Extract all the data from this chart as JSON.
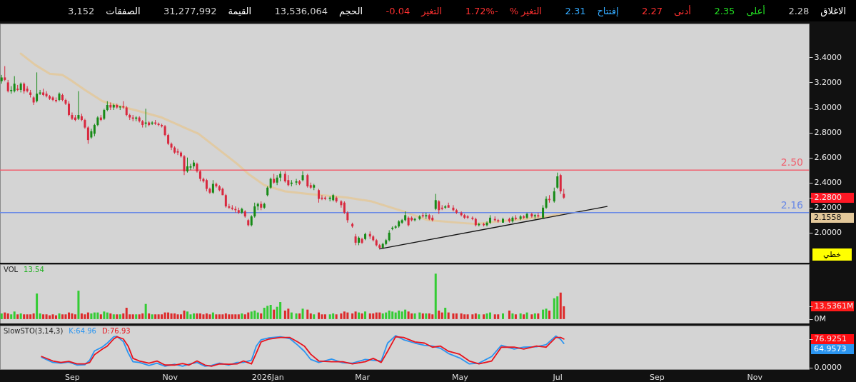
{
  "chart_data": [
    {
      "type": "other",
      "annotations": [
        "الاغلاق",
        "2.28",
        "أعلى",
        "2.35",
        "أدنى",
        "2.27",
        "إفتتاح",
        "2.31",
        "التغير %",
        "1.72%-",
        "التغير",
        "-0.04",
        "الحجم",
        "13,536,064",
        "القيمة",
        "31,277,992",
        "الصفقات",
        "3,152"
      ]
    },
    {
      "type": "candlestick",
      "x": [
        "2025-07-19",
        "2025-07-21",
        "2025-07-23",
        "2025-07-25",
        "2025-07-27",
        "2025-07-29",
        "2025-07-31",
        "2025-08-02",
        "2025-08-04",
        "2025-08-06",
        "2025-08-08",
        "2025-08-10",
        "2025-08-12",
        "2025-08-14",
        "2025-08-16",
        "2025-08-18",
        "2025-08-20",
        "2025-08-22",
        "2025-08-24",
        "2025-08-26",
        "2025-08-28",
        "2025-08-30",
        "2025-09-01",
        "2025-09-03",
        "2025-09-05",
        "2025-09-07",
        "2025-09-09",
        "2025-09-11",
        "2025-09-13",
        "2025-09-15",
        "2025-09-17",
        "2025-09-19",
        "2025-09-21",
        "2025-09-23",
        "2025-09-25",
        "2025-09-27",
        "2025-09-29",
        "2025-10-01",
        "2025-10-03",
        "2025-10-05",
        "2025-10-07",
        "2025-10-09",
        "2025-10-11",
        "2025-10-13",
        "2025-10-15",
        "2025-10-17",
        "2025-10-19",
        "2025-10-21",
        "2025-10-23",
        "2025-10-25",
        "2025-10-27",
        "2025-10-29",
        "2025-10-31",
        "2025-11-02",
        "2025-11-04",
        "2025-11-06",
        "2025-11-08",
        "2025-11-10",
        "2025-11-12",
        "2025-11-14",
        "2025-11-16",
        "2025-11-18",
        "2025-11-20",
        "2025-11-22",
        "2025-11-24",
        "2025-11-26",
        "2025-11-28",
        "2025-11-30",
        "2025-12-02",
        "2025-12-04",
        "2025-12-06",
        "2025-12-08",
        "2025-12-10",
        "2025-12-12",
        "2025-12-14",
        "2025-12-16",
        "2025-12-18",
        "2025-12-20",
        "2025-12-22",
        "2025-12-24",
        "2025-12-26",
        "2025-12-28",
        "2025-12-30",
        "2026-01-01",
        "2026-01-03",
        "2026-01-05",
        "2026-01-07",
        "2026-01-09",
        "2026-01-12",
        "2026-01-14",
        "2026-01-16",
        "2026-01-19",
        "2026-01-21",
        "2026-01-23",
        "2026-01-26",
        "2026-01-28",
        "2026-01-30",
        "2026-02-02",
        "2026-02-04",
        "2026-02-06",
        "2026-02-09",
        "2026-02-11",
        "2026-02-13",
        "2026-02-16",
        "2026-02-18",
        "2026-02-20",
        "2026-02-23",
        "2026-02-25",
        "2026-02-27",
        "2026-03-01",
        "2026-03-03",
        "2026-03-06",
        "2026-03-08",
        "2026-03-10",
        "2026-03-12",
        "2026-03-14",
        "2026-03-16",
        "2026-03-18",
        "2026-03-20",
        "2026-03-22",
        "2026-03-24",
        "2026-03-26",
        "2026-03-28",
        "2026-03-30",
        "2026-04-01",
        "2026-04-03",
        "2026-04-06",
        "2026-04-08",
        "2026-04-10",
        "2026-04-12",
        "2026-04-14",
        "2026-04-16",
        "2026-04-18",
        "2026-04-20",
        "2026-04-22",
        "2026-04-24",
        "2026-04-27",
        "2026-04-29",
        "2026-05-02",
        "2026-05-04",
        "2026-05-06",
        "2026-05-09",
        "2026-05-11",
        "2026-05-13",
        "2026-05-16",
        "2026-05-18",
        "2026-05-20",
        "2026-05-23",
        "2026-05-25",
        "2026-05-28",
        "2026-06-01",
        "2026-06-03",
        "2026-06-05",
        "2026-06-08",
        "2026-06-10",
        "2026-06-12",
        "2026-06-15",
        "2026-06-17",
        "2026-06-19",
        "2026-06-22",
        "2026-06-24",
        "2026-06-26",
        "2026-06-29",
        "2026-07-01",
        "2026-07-03",
        "2026-07-05"
      ],
      "ohlc": [
        [
          3.21,
          3.26,
          3.19,
          3.24
        ],
        [
          3.24,
          3.33,
          3.21,
          3.22
        ],
        [
          3.2,
          3.22,
          3.12,
          3.13
        ],
        [
          3.13,
          3.17,
          3.11,
          3.14
        ],
        [
          3.13,
          3.25,
          3.12,
          3.19
        ],
        [
          3.15,
          3.18,
          3.13,
          3.14
        ],
        [
          3.14,
          3.2,
          3.12,
          3.19
        ],
        [
          3.19,
          3.2,
          3.11,
          3.13
        ],
        [
          3.15,
          3.17,
          3.12,
          3.13
        ],
        [
          3.12,
          3.14,
          3.08,
          3.1
        ],
        [
          3.08,
          3.09,
          3.02,
          3.04
        ],
        [
          3.05,
          3.28,
          3.04,
          3.11
        ],
        [
          3.11,
          3.14,
          3.1,
          3.12
        ],
        [
          3.12,
          3.15,
          3.09,
          3.1
        ],
        [
          3.11,
          3.13,
          3.08,
          3.09
        ],
        [
          3.09,
          3.1,
          3.06,
          3.07
        ],
        [
          3.08,
          3.09,
          3.05,
          3.06
        ],
        [
          3.06,
          3.08,
          3.04,
          3.05
        ],
        [
          3.06,
          3.12,
          3.05,
          3.11
        ],
        [
          3.1,
          3.11,
          3.05,
          3.06
        ],
        [
          3.06,
          3.07,
          3.02,
          3.03
        ],
        [
          3.03,
          3.05,
          2.93,
          2.94
        ],
        [
          2.94,
          2.96,
          2.9,
          2.91
        ],
        [
          2.92,
          2.94,
          2.89,
          2.9
        ],
        [
          2.91,
          3.13,
          2.9,
          2.94
        ],
        [
          2.93,
          2.95,
          2.89,
          2.9
        ],
        [
          2.9,
          2.91,
          2.83,
          2.84
        ],
        [
          2.84,
          2.85,
          2.71,
          2.74
        ],
        [
          2.76,
          2.83,
          2.75,
          2.81
        ],
        [
          2.79,
          2.87,
          2.77,
          2.86
        ],
        [
          2.86,
          2.93,
          2.85,
          2.92
        ],
        [
          2.92,
          2.94,
          2.89,
          2.9
        ],
        [
          2.91,
          2.99,
          2.9,
          2.98
        ],
        [
          2.98,
          3.05,
          2.97,
          3.02
        ],
        [
          3.02,
          3.04,
          2.98,
          3.0
        ],
        [
          3.0,
          3.03,
          2.98,
          3.02
        ],
        [
          3.02,
          3.03,
          2.99,
          3.0
        ],
        [
          3.0,
          3.01,
          2.98,
          3.01
        ],
        [
          3.01,
          3.05,
          2.99,
          3.0
        ],
        [
          3.0,
          3.01,
          2.93,
          2.94
        ],
        [
          2.94,
          2.95,
          2.9,
          2.92
        ],
        [
          2.92,
          2.94,
          2.89,
          2.91
        ],
        [
          2.91,
          2.93,
          2.89,
          2.92
        ],
        [
          2.92,
          2.93,
          2.88,
          2.89
        ],
        [
          2.89,
          2.9,
          2.84,
          2.86
        ],
        [
          2.87,
          2.99,
          2.84,
          2.88
        ],
        [
          2.88,
          2.89,
          2.85,
          2.86
        ],
        [
          2.87,
          2.89,
          2.86,
          2.88
        ],
        [
          2.88,
          2.9,
          2.86,
          2.87
        ],
        [
          2.87,
          2.88,
          2.85,
          2.86
        ],
        [
          2.86,
          2.87,
          2.84,
          2.85
        ],
        [
          2.85,
          2.86,
          2.77,
          2.78
        ],
        [
          2.78,
          2.79,
          2.7,
          2.71
        ],
        [
          2.71,
          2.72,
          2.66,
          2.68
        ],
        [
          2.68,
          2.69,
          2.63,
          2.64
        ],
        [
          2.65,
          2.67,
          2.62,
          2.64
        ],
        [
          2.64,
          2.65,
          2.6,
          2.61
        ],
        [
          2.61,
          2.62,
          2.46,
          2.49
        ],
        [
          2.49,
          2.6,
          2.48,
          2.53
        ],
        [
          2.52,
          2.55,
          2.5,
          2.53
        ],
        [
          2.53,
          2.58,
          2.51,
          2.56
        ],
        [
          2.55,
          2.56,
          2.48,
          2.49
        ],
        [
          2.49,
          2.5,
          2.41,
          2.43
        ],
        [
          2.43,
          2.44,
          2.4,
          2.41
        ],
        [
          2.42,
          2.43,
          2.33,
          2.35
        ],
        [
          2.35,
          2.36,
          2.31,
          2.32
        ],
        [
          2.32,
          2.42,
          2.31,
          2.39
        ],
        [
          2.39,
          2.4,
          2.36,
          2.37
        ],
        [
          2.37,
          2.38,
          2.33,
          2.34
        ],
        [
          2.35,
          2.36,
          2.3,
          2.3
        ],
        [
          2.3,
          2.31,
          2.2,
          2.21
        ],
        [
          2.21,
          2.23,
          2.19,
          2.2
        ],
        [
          2.2,
          2.22,
          2.18,
          2.19
        ],
        [
          2.19,
          2.21,
          2.16,
          2.18
        ],
        [
          2.18,
          2.2,
          2.15,
          2.16
        ],
        [
          2.16,
          2.2,
          2.15,
          2.19
        ],
        [
          2.17,
          2.18,
          2.12,
          2.13
        ],
        [
          2.1,
          2.11,
          2.05,
          2.06
        ],
        [
          2.06,
          2.14,
          2.05,
          2.13
        ],
        [
          2.13,
          2.24,
          2.12,
          2.21
        ],
        [
          2.21,
          2.24,
          2.18,
          2.23
        ],
        [
          2.23,
          2.25,
          2.18,
          2.2
        ],
        [
          2.2,
          2.24,
          2.19,
          2.23
        ],
        [
          2.3,
          2.37,
          2.29,
          2.36
        ],
        [
          2.36,
          2.44,
          2.35,
          2.43
        ],
        [
          2.43,
          2.47,
          2.39,
          2.4
        ],
        [
          2.4,
          2.46,
          2.38,
          2.44
        ],
        [
          2.44,
          2.49,
          2.41,
          2.47
        ],
        [
          2.47,
          2.49,
          2.4,
          2.41
        ],
        [
          2.42,
          2.46,
          2.37,
          2.38
        ],
        [
          2.39,
          2.42,
          2.37,
          2.4
        ],
        [
          2.4,
          2.43,
          2.38,
          2.41
        ],
        [
          2.41,
          2.42,
          2.38,
          2.39
        ],
        [
          2.42,
          2.49,
          2.41,
          2.46
        ],
        [
          2.46,
          2.47,
          2.36,
          2.37
        ],
        [
          2.38,
          2.4,
          2.35,
          2.36
        ],
        [
          2.36,
          2.39,
          2.34,
          2.38
        ],
        [
          2.34,
          2.35,
          2.24,
          2.27
        ],
        [
          2.28,
          2.3,
          2.26,
          2.27
        ],
        [
          2.28,
          2.29,
          2.26,
          2.27
        ],
        [
          2.27,
          2.29,
          2.25,
          2.28
        ],
        [
          2.26,
          2.31,
          2.25,
          2.3
        ],
        [
          2.28,
          2.29,
          2.24,
          2.25
        ],
        [
          2.25,
          2.26,
          2.2,
          2.22
        ],
        [
          2.24,
          2.25,
          2.15,
          2.16
        ],
        [
          2.16,
          2.17,
          2.08,
          2.1
        ],
        [
          2.07,
          2.08,
          2.04,
          2.05
        ],
        [
          1.97,
          1.99,
          1.9,
          1.92
        ],
        [
          1.92,
          1.97,
          1.9,
          1.96
        ],
        [
          1.95,
          1.96,
          1.91,
          1.92
        ],
        [
          1.95,
          2.0,
          1.94,
          1.99
        ],
        [
          1.99,
          2.01,
          1.95,
          1.97
        ],
        [
          1.97,
          1.98,
          1.93,
          1.94
        ],
        [
          1.94,
          1.95,
          1.89,
          1.9
        ],
        [
          1.9,
          1.91,
          1.87,
          1.88
        ],
        [
          1.88,
          1.92,
          1.88,
          1.91
        ],
        [
          1.91,
          1.95,
          1.9,
          1.94
        ],
        [
          1.94,
          2.02,
          1.93,
          2.0
        ],
        [
          2.03,
          2.05,
          2.02,
          2.04
        ],
        [
          2.04,
          2.06,
          2.03,
          2.05
        ],
        [
          2.05,
          2.1,
          2.04,
          2.09
        ],
        [
          2.08,
          2.11,
          2.07,
          2.1
        ],
        [
          2.1,
          2.17,
          2.09,
          2.14
        ],
        [
          2.12,
          2.13,
          2.05,
          2.06
        ],
        [
          2.12,
          2.13,
          2.09,
          2.1
        ],
        [
          2.1,
          2.12,
          2.09,
          2.11
        ],
        [
          2.11,
          2.14,
          2.1,
          2.13
        ],
        [
          2.14,
          2.16,
          2.12,
          2.13
        ],
        [
          2.13,
          2.16,
          2.11,
          2.14
        ],
        [
          2.14,
          2.15,
          2.1,
          2.11
        ],
        [
          2.12,
          2.14,
          2.09,
          2.1
        ],
        [
          2.19,
          2.31,
          2.18,
          2.26
        ],
        [
          2.25,
          2.26,
          2.15,
          2.18
        ],
        [
          2.2,
          2.22,
          2.18,
          2.19
        ],
        [
          2.2,
          2.22,
          2.19,
          2.21
        ],
        [
          2.22,
          2.24,
          2.2,
          2.2
        ],
        [
          2.2,
          2.22,
          2.17,
          2.18
        ],
        [
          2.18,
          2.19,
          2.15,
          2.16
        ],
        [
          2.16,
          2.17,
          2.13,
          2.14
        ],
        [
          2.14,
          2.15,
          2.11,
          2.12
        ],
        [
          2.13,
          2.14,
          2.11,
          2.12
        ],
        [
          2.12,
          2.13,
          2.1,
          2.11
        ],
        [
          2.11,
          2.12,
          2.05,
          2.06
        ],
        [
          2.06,
          2.08,
          2.05,
          2.07
        ],
        [
          2.07,
          2.08,
          2.05,
          2.06
        ],
        [
          2.06,
          2.09,
          2.05,
          2.08
        ],
        [
          2.08,
          2.14,
          2.07,
          2.12
        ],
        [
          2.11,
          2.13,
          2.09,
          2.1
        ],
        [
          2.1,
          2.11,
          2.08,
          2.09
        ],
        [
          2.08,
          2.12,
          2.08,
          2.11
        ],
        [
          2.11,
          2.12,
          2.08,
          2.09
        ],
        [
          2.09,
          2.13,
          2.08,
          2.12
        ],
        [
          2.12,
          2.14,
          2.1,
          2.11
        ],
        [
          2.11,
          2.14,
          2.1,
          2.13
        ],
        [
          2.13,
          2.14,
          2.11,
          2.12
        ],
        [
          2.12,
          2.16,
          2.11,
          2.15
        ],
        [
          2.15,
          2.16,
          2.12,
          2.13
        ],
        [
          2.13,
          2.15,
          2.11,
          2.14
        ],
        [
          2.14,
          2.16,
          2.12,
          2.13
        ],
        [
          2.12,
          2.22,
          2.11,
          2.2
        ],
        [
          2.2,
          2.29,
          2.19,
          2.27
        ],
        [
          2.27,
          2.3,
          2.24,
          2.26
        ],
        [
          2.25,
          2.36,
          2.24,
          2.33
        ],
        [
          2.36,
          2.48,
          2.35,
          2.45
        ],
        [
          2.46,
          2.47,
          2.31,
          2.33
        ],
        [
          2.31,
          2.35,
          2.27,
          2.28
        ]
      ],
      "colors": [
        "#168a16",
        "#d8283e",
        "#d8283e",
        "#168a16",
        "#168a16",
        "#d8283e",
        "#168a16",
        "#d8283e",
        "#d8283e",
        "#d8283e",
        "#d8283e",
        "#168a16",
        "#168a16",
        "#d8283e",
        "#d8283e",
        "#d8283e",
        "#d8283e",
        "#d8283e",
        "#168a16",
        "#d8283e",
        "#d8283e",
        "#d8283e",
        "#d8283e",
        "#d8283e",
        "#168a16",
        "#d8283e",
        "#d8283e",
        "#d8283e",
        "#168a16",
        "#168a16",
        "#168a16",
        "#d8283e",
        "#168a16",
        "#168a16",
        "#d8283e",
        "#168a16",
        "#d8283e",
        "#168a16",
        "#d8283e",
        "#d8283e",
        "#d8283e",
        "#d8283e",
        "#168a16",
        "#d8283e",
        "#d8283e",
        "#168a16",
        "#d8283e",
        "#168a16",
        "#d8283e",
        "#d8283e",
        "#d8283e",
        "#d8283e",
        "#d8283e",
        "#d8283e",
        "#d8283e",
        "#d8283e",
        "#d8283e",
        "#d8283e",
        "#168a16",
        "#168a16",
        "#168a16",
        "#d8283e",
        "#d8283e",
        "#d8283e",
        "#d8283e",
        "#d8283e",
        "#168a16",
        "#d8283e",
        "#d8283e",
        "#d8283e",
        "#d8283e",
        "#d8283e",
        "#d8283e",
        "#d8283e",
        "#d8283e",
        "#168a16",
        "#d8283e",
        "#d8283e",
        "#168a16",
        "#168a16",
        "#168a16",
        "#d8283e",
        "#168a16",
        "#168a16",
        "#168a16",
        "#d8283e",
        "#168a16",
        "#168a16",
        "#d8283e",
        "#d8283e",
        "#168a16",
        "#168a16",
        "#d8283e",
        "#168a16",
        "#d8283e",
        "#d8283e",
        "#168a16",
        "#d8283e",
        "#d8283e",
        "#d8283e",
        "#168a16",
        "#168a16",
        "#d8283e",
        "#d8283e",
        "#d8283e",
        "#d8283e",
        "#d8283e",
        "#d8283e",
        "#168a16",
        "#d8283e",
        "#168a16",
        "#d8283e",
        "#d8283e",
        "#d8283e",
        "#d8283e",
        "#168a16",
        "#168a16",
        "#168a16",
        "#168a16",
        "#168a16",
        "#168a16",
        "#168a16",
        "#168a16",
        "#d8283e",
        "#d8283e",
        "#168a16",
        "#168a16",
        "#d8283e",
        "#168a16",
        "#d8283e",
        "#d8283e",
        "#168a16",
        "#d8283e",
        "#d8283e",
        "#168a16",
        "#d8283e",
        "#d8283e",
        "#d8283e",
        "#d8283e",
        "#d8283e",
        "#d8283e",
        "#d8283e",
        "#d8283e",
        "#168a16",
        "#d8283e",
        "#168a16",
        "#168a16",
        "#d8283e",
        "#d8283e",
        "#168a16",
        "#d8283e",
        "#168a16",
        "#d8283e",
        "#168a16",
        "#d8283e",
        "#168a16",
        "#d8283e",
        "#168a16",
        "#d8283e",
        "#168a16",
        "#168a16",
        "#d8283e",
        "#168a16",
        "#168a16",
        "#d8283e",
        "#d8283e"
      ],
      "series": [
        {
          "type": "line",
          "color": "#e3c89a",
          "x": [
            "2025-07-31",
            "2025-08-09",
            "2025-08-18",
            "2025-08-26",
            "2025-08-31",
            "2025-09-09",
            "2025-09-20",
            "2025-10-01",
            "2025-10-13",
            "2025-10-27",
            "2025-11-10",
            "2025-11-19",
            "2025-11-30",
            "2025-12-13",
            "2025-12-20",
            "2025-12-30",
            "2026-01-12",
            "2026-01-26",
            "2026-02-20",
            "2026-03-07",
            "2026-03-27",
            "2026-04-11",
            "2026-04-30",
            "2026-05-11",
            "2026-05-25",
            "2026-06-11",
            "2026-06-25",
            "2026-07-05"
          ],
          "values": [
            3.43,
            3.34,
            3.27,
            3.26,
            3.22,
            3.14,
            3.05,
            3.01,
            2.97,
            2.92,
            2.84,
            2.79,
            2.68,
            2.55,
            2.47,
            2.38,
            2.33,
            2.31,
            2.28,
            2.25,
            2.17,
            2.1,
            2.08,
            2.07,
            2.09,
            2.11,
            2.13,
            2.1558
          ]
        },
        {
          "type": "line",
          "color": "#111111",
          "x": [
            "2026-03-12",
            "2026-08-01"
          ],
          "values": [
            1.87,
            2.21
          ]
        }
      ],
      "xlim": [
        "2025-07-18",
        "2026-12-05"
      ],
      "ylim": [
        1.76,
        3.67
      ],
      "yticks": [
        {
          "value": 2.0,
          "label": "2.0000"
        },
        {
          "value": 2.2,
          "label": "2.2000"
        },
        {
          "value": 2.28,
          "label": "2.2800"
        },
        {
          "value": 2.4,
          "label": "2.4000"
        },
        {
          "value": 2.6,
          "label": "2.6000"
        },
        {
          "value": 2.8,
          "label": "2.8000"
        },
        {
          "value": 3.0,
          "label": "3.0000"
        },
        {
          "value": 3.2,
          "label": "3.2000"
        },
        {
          "value": 3.4,
          "label": "3.4000"
        }
      ],
      "tick_labels": "y",
      "ref_lines": [
        {
          "axis": "y",
          "value": 2.5,
          "label": "2.50",
          "color": "#f0606e"
        },
        {
          "axis": "y",
          "value": 2.16,
          "label": "2.16",
          "color": "#6a8ae6"
        }
      ],
      "annotations": [
        "2.1558",
        "خطي"
      ]
    },
    {
      "type": "bar",
      "title": "VOL",
      "x": [
        "2025-07-19",
        "2025-07-21",
        "2025-07-23",
        "2025-07-25",
        "2025-07-27",
        "2025-07-29",
        "2025-07-31",
        "2025-08-02",
        "2025-08-04",
        "2025-08-06",
        "2025-08-08",
        "2025-08-10",
        "2025-08-12",
        "2025-08-14",
        "2025-08-16",
        "2025-08-18",
        "2025-08-20",
        "2025-08-22",
        "2025-08-24",
        "2025-08-26",
        "2025-08-28",
        "2025-08-30",
        "2025-09-01",
        "2025-09-03",
        "2025-09-05",
        "2025-09-07",
        "2025-09-09",
        "2025-09-11",
        "2025-09-13",
        "2025-09-15",
        "2025-09-17",
        "2025-09-19",
        "2025-09-21",
        "2025-09-23",
        "2025-09-25",
        "2025-09-27",
        "2025-09-29",
        "2025-10-01",
        "2025-10-03",
        "2025-10-05",
        "2025-10-07",
        "2025-10-09",
        "2025-10-11",
        "2025-10-13",
        "2025-10-15",
        "2025-10-17",
        "2025-10-19",
        "2025-10-21",
        "2025-10-23",
        "2025-10-25",
        "2025-10-27",
        "2025-10-29",
        "2025-10-31",
        "2025-11-02",
        "2025-11-04",
        "2025-11-06",
        "2025-11-08",
        "2025-11-10",
        "2025-11-12",
        "2025-11-14",
        "2025-11-16",
        "2025-11-18",
        "2025-11-20",
        "2025-11-22",
        "2025-11-24",
        "2025-11-26",
        "2025-11-28",
        "2025-11-30",
        "2025-12-02",
        "2025-12-04",
        "2025-12-06",
        "2025-12-08",
        "2025-12-10",
        "2025-12-12",
        "2025-12-14",
        "2025-12-16",
        "2025-12-18",
        "2025-12-20",
        "2025-12-22",
        "2025-12-24",
        "2025-12-26",
        "2025-12-28",
        "2025-12-30",
        "2026-01-01",
        "2026-01-03",
        "2026-01-05",
        "2026-01-07",
        "2026-01-09",
        "2026-01-12",
        "2026-01-14",
        "2026-01-16",
        "2026-01-19",
        "2026-01-21",
        "2026-01-23",
        "2026-01-26",
        "2026-01-28",
        "2026-01-30",
        "2026-02-02",
        "2026-02-04",
        "2026-02-06",
        "2026-02-09",
        "2026-02-11",
        "2026-02-13",
        "2026-02-16",
        "2026-02-18",
        "2026-02-20",
        "2026-02-23",
        "2026-02-25",
        "2026-02-27",
        "2026-03-01",
        "2026-03-03",
        "2026-03-06",
        "2026-03-08",
        "2026-03-10",
        "2026-03-12",
        "2026-03-14",
        "2026-03-16",
        "2026-03-18",
        "2026-03-20",
        "2026-03-22",
        "2026-03-24",
        "2026-03-26",
        "2026-03-28",
        "2026-03-30",
        "2026-04-01",
        "2026-04-03",
        "2026-04-06",
        "2026-04-08",
        "2026-04-10",
        "2026-04-12",
        "2026-04-14",
        "2026-04-16",
        "2026-04-18",
        "2026-04-20",
        "2026-04-22",
        "2026-04-24",
        "2026-04-27",
        "2026-04-29",
        "2026-05-02",
        "2026-05-04",
        "2026-05-06",
        "2026-05-09",
        "2026-05-11",
        "2026-05-13",
        "2026-05-16",
        "2026-05-18",
        "2026-05-20",
        "2026-05-23",
        "2026-05-25",
        "2026-05-28",
        "2026-06-01",
        "2026-06-03",
        "2026-06-05",
        "2026-06-08",
        "2026-06-10",
        "2026-06-12",
        "2026-06-15",
        "2026-06-17",
        "2026-06-19",
        "2026-06-22",
        "2026-06-24",
        "2026-06-26",
        "2026-06-29",
        "2026-07-01",
        "2026-07-03",
        "2026-07-05"
      ],
      "values": [
        6,
        7,
        6,
        5,
        8,
        5,
        6,
        5,
        5,
        5,
        6,
        27,
        6,
        5,
        5,
        4,
        5,
        4,
        6,
        5,
        5,
        7,
        6,
        5,
        30,
        6,
        5,
        7,
        6,
        7,
        7,
        5,
        8,
        7,
        6,
        5,
        5,
        5,
        6,
        12,
        5,
        5,
        5,
        5,
        6,
        16,
        6,
        5,
        5,
        5,
        5,
        7,
        7,
        6,
        6,
        5,
        5,
        9,
        8,
        5,
        6,
        6,
        6,
        5,
        6,
        5,
        7,
        5,
        5,
        5,
        6,
        5,
        5,
        5,
        5,
        6,
        5,
        7,
        8,
        9,
        7,
        6,
        12,
        14,
        15,
        10,
        13,
        18,
        9,
        11,
        7,
        6,
        6,
        11,
        10,
        6,
        5,
        7,
        5,
        5,
        5,
        6,
        5,
        6,
        8,
        7,
        6,
        8,
        7,
        6,
        8,
        6,
        6,
        7,
        7,
        6,
        7,
        9,
        8,
        7,
        9,
        8,
        10,
        8,
        6,
        6,
        7,
        6,
        6,
        6,
        5,
        48,
        9,
        7,
        12,
        7,
        6,
        6,
        6,
        5,
        5,
        5,
        6,
        5,
        5,
        6,
        7,
        5,
        5,
        6,
        9,
        6,
        5,
        6,
        5,
        7,
        5,
        6,
        6,
        10,
        11,
        9,
        22,
        24,
        28,
        13.5361
      ],
      "colors": [
        "#33cc33",
        "#dd2a2a",
        "#dd2a2a",
        "#33cc33",
        "#33cc33",
        "#dd2a2a",
        "#33cc33",
        "#dd2a2a",
        "#dd2a2a",
        "#dd2a2a",
        "#dd2a2a",
        "#33cc33",
        "#33cc33",
        "#dd2a2a",
        "#dd2a2a",
        "#dd2a2a",
        "#dd2a2a",
        "#dd2a2a",
        "#33cc33",
        "#dd2a2a",
        "#dd2a2a",
        "#dd2a2a",
        "#dd2a2a",
        "#dd2a2a",
        "#33cc33",
        "#dd2a2a",
        "#dd2a2a",
        "#dd2a2a",
        "#33cc33",
        "#33cc33",
        "#33cc33",
        "#dd2a2a",
        "#33cc33",
        "#33cc33",
        "#dd2a2a",
        "#33cc33",
        "#dd2a2a",
        "#33cc33",
        "#dd2a2a",
        "#dd2a2a",
        "#dd2a2a",
        "#dd2a2a",
        "#33cc33",
        "#dd2a2a",
        "#dd2a2a",
        "#33cc33",
        "#dd2a2a",
        "#33cc33",
        "#dd2a2a",
        "#dd2a2a",
        "#dd2a2a",
        "#dd2a2a",
        "#dd2a2a",
        "#dd2a2a",
        "#dd2a2a",
        "#dd2a2a",
        "#dd2a2a",
        "#dd2a2a",
        "#33cc33",
        "#33cc33",
        "#33cc33",
        "#dd2a2a",
        "#dd2a2a",
        "#dd2a2a",
        "#dd2a2a",
        "#dd2a2a",
        "#33cc33",
        "#dd2a2a",
        "#dd2a2a",
        "#dd2a2a",
        "#dd2a2a",
        "#dd2a2a",
        "#dd2a2a",
        "#dd2a2a",
        "#dd2a2a",
        "#33cc33",
        "#dd2a2a",
        "#dd2a2a",
        "#33cc33",
        "#33cc33",
        "#33cc33",
        "#dd2a2a",
        "#33cc33",
        "#33cc33",
        "#33cc33",
        "#dd2a2a",
        "#33cc33",
        "#33cc33",
        "#dd2a2a",
        "#dd2a2a",
        "#33cc33",
        "#33cc33",
        "#dd2a2a",
        "#33cc33",
        "#dd2a2a",
        "#dd2a2a",
        "#33cc33",
        "#dd2a2a",
        "#dd2a2a",
        "#dd2a2a",
        "#33cc33",
        "#33cc33",
        "#dd2a2a",
        "#dd2a2a",
        "#dd2a2a",
        "#dd2a2a",
        "#dd2a2a",
        "#dd2a2a",
        "#33cc33",
        "#dd2a2a",
        "#33cc33",
        "#dd2a2a",
        "#dd2a2a",
        "#dd2a2a",
        "#dd2a2a",
        "#33cc33",
        "#33cc33",
        "#33cc33",
        "#33cc33",
        "#33cc33",
        "#33cc33",
        "#33cc33",
        "#33cc33",
        "#dd2a2a",
        "#dd2a2a",
        "#33cc33",
        "#33cc33",
        "#dd2a2a",
        "#33cc33",
        "#dd2a2a",
        "#dd2a2a",
        "#33cc33",
        "#dd2a2a",
        "#dd2a2a",
        "#33cc33",
        "#dd2a2a",
        "#dd2a2a",
        "#dd2a2a",
        "#dd2a2a",
        "#dd2a2a",
        "#dd2a2a",
        "#dd2a2a",
        "#dd2a2a",
        "#33cc33",
        "#dd2a2a",
        "#33cc33",
        "#33cc33",
        "#dd2a2a",
        "#dd2a2a",
        "#33cc33",
        "#dd2a2a",
        "#33cc33",
        "#dd2a2a",
        "#33cc33",
        "#dd2a2a",
        "#33cc33",
        "#dd2a2a",
        "#33cc33",
        "#dd2a2a",
        "#33cc33",
        "#33cc33",
        "#dd2a2a",
        "#33cc33",
        "#33cc33",
        "#dd2a2a",
        "#dd2a2a"
      ],
      "xlim": [
        "2025-07-18",
        "2026-12-05"
      ],
      "ylim": [
        -4.6,
        58
      ],
      "yticks": [
        {
          "value": 0,
          "label": "0M"
        },
        {
          "value": 13.5361,
          "label": "13.5361M"
        }
      ],
      "tick_labels": "y",
      "annotations": [
        "13.54"
      ]
    },
    {
      "type": "line",
      "title": "SlowSTO(3,14,3)",
      "x": [
        "2025-08-13",
        "2025-08-20",
        "2025-08-25",
        "2025-08-30",
        "2025-09-04",
        "2025-09-09",
        "2025-09-12",
        "2025-09-15",
        "2025-09-20",
        "2025-09-23",
        "2025-09-27",
        "2025-09-29",
        "2025-10-03",
        "2025-10-06",
        "2025-10-09",
        "2025-10-13",
        "2025-10-19",
        "2025-10-24",
        "2025-10-29",
        "2025-11-04",
        "2025-11-09",
        "2025-11-13",
        "2025-11-18",
        "2025-11-23",
        "2025-11-27",
        "2025-12-02",
        "2025-12-08",
        "2025-12-13",
        "2025-12-17",
        "2025-12-22",
        "2025-12-25",
        "2025-12-28",
        "2026-01-02",
        "2026-01-09",
        "2026-01-15",
        "2026-01-20",
        "2026-01-24",
        "2026-01-28",
        "2026-02-02",
        "2026-02-10",
        "2026-02-17",
        "2026-02-23",
        "2026-03-03",
        "2026-03-08",
        "2026-03-13",
        "2026-03-17",
        "2026-03-22",
        "2026-03-27",
        "2026-04-03",
        "2026-04-09",
        "2026-04-14",
        "2026-04-19",
        "2026-04-24",
        "2026-05-01",
        "2026-05-07",
        "2026-05-13",
        "2026-05-21",
        "2026-05-27",
        "2026-06-04",
        "2026-06-10",
        "2026-06-18",
        "2026-06-24",
        "2026-06-30",
        "2026-07-03",
        "2026-07-05"
      ],
      "series": [
        {
          "name": "K:64.96",
          "color": "#2b95f0",
          "values": [
            28,
            14,
            12,
            15,
            7,
            8,
            20,
            45,
            56,
            66,
            83,
            84,
            70,
            40,
            16,
            14,
            6,
            12,
            4,
            9,
            4,
            9,
            14,
            4,
            6,
            12,
            7,
            14,
            14,
            20,
            58,
            75,
            80,
            83,
            78,
            60,
            44,
            22,
            14,
            23,
            13,
            12,
            22,
            20,
            18,
            66,
            86,
            75,
            66,
            60,
            58,
            52,
            38,
            26,
            10,
            12,
            30,
            60,
            50,
            55,
            56,
            62,
            85,
            76,
            64.9573
          ]
        },
        {
          "name": "D:76.93",
          "color": "#e8141e",
          "values": [
            30,
            18,
            14,
            17,
            10,
            10,
            14,
            35,
            50,
            58,
            77,
            83,
            77,
            58,
            25,
            18,
            12,
            18,
            7,
            7,
            11,
            7,
            18,
            7,
            4,
            10,
            9,
            10,
            18,
            10,
            39,
            69,
            77,
            81,
            81,
            69,
            58,
            36,
            18,
            16,
            16,
            10,
            16,
            25,
            14,
            44,
            83,
            81,
            69,
            66,
            55,
            58,
            44,
            36,
            18,
            10,
            18,
            55,
            55,
            50,
            58,
            55,
            81,
            81,
            76.9251
          ]
        }
      ],
      "xlim": [
        "2025-07-18",
        "2026-12-05"
      ],
      "xticks": [
        {
          "value": "2025-09-01",
          "label": "Sep"
        },
        {
          "value": "2025-11-01",
          "label": "Nov"
        },
        {
          "value": "2026-01-01",
          "label": "2026Jan"
        },
        {
          "value": "2026-03-01",
          "label": "Mar"
        },
        {
          "value": "2026-05-01",
          "label": "May"
        },
        {
          "value": "2026-07-01",
          "label": "Jul"
        },
        {
          "value": "2026-09-01",
          "label": "Sep"
        },
        {
          "value": "2026-11-01",
          "label": "Nov"
        }
      ],
      "ylim": [
        -4,
        113
      ],
      "yticks": [
        {
          "value": 0,
          "label": "0.0000"
        },
        76.9251
      ],
      "legend": "top left",
      "annotations": [
        "64.9573"
      ]
    }
  ]
}
